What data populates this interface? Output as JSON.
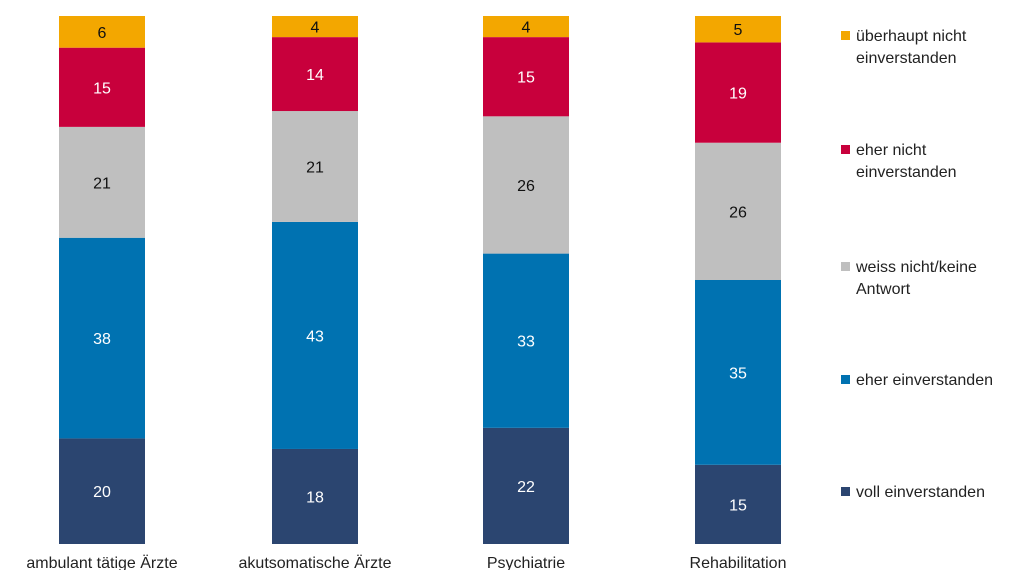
{
  "chart_data": {
    "type": "bar",
    "stacked": true,
    "normalized_percent": true,
    "categories": [
      "ambulant tätige Ärzte",
      "akutsomatische Ärzte",
      "Psychiatrie",
      "Rehabilitation"
    ],
    "series": [
      {
        "name": "voll einverstanden",
        "color": "#2b4570",
        "values": [
          20,
          18,
          22,
          15
        ]
      },
      {
        "name": "eher einverstanden",
        "color": "#0072b1",
        "values": [
          38,
          43,
          33,
          35
        ]
      },
      {
        "name": "weiss nicht/keine Antwort",
        "color": "#bfbfbf",
        "values": [
          21,
          21,
          26,
          26
        ]
      },
      {
        "name": "eher nicht einverstanden",
        "color": "#c8003c",
        "values": [
          15,
          14,
          15,
          19
        ]
      },
      {
        "name": "überhaupt nicht einverstanden",
        "color": "#f3a700",
        "values": [
          6,
          4,
          4,
          5
        ]
      }
    ],
    "legend": {
      "position": "right",
      "entries": [
        [
          "überhaupt nicht",
          "einverstanden"
        ],
        [
          "eher nicht",
          "einverstanden"
        ],
        [
          "weiss nicht/keine",
          "Antwort"
        ],
        [
          "eher einverstanden"
        ],
        [
          "voll einverstanden"
        ]
      ]
    },
    "grid": false,
    "title": "",
    "xlabel": "",
    "ylabel": ""
  }
}
